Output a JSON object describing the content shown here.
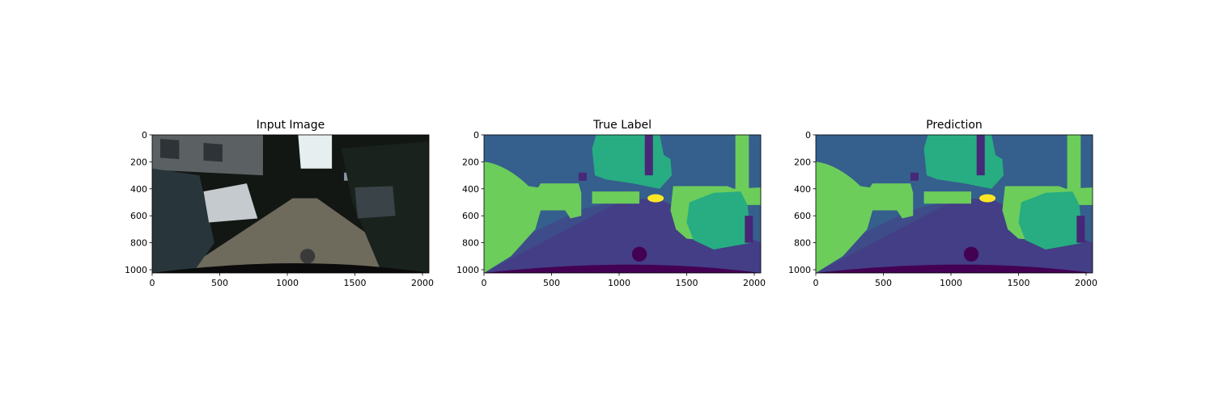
{
  "chart_data": [
    {
      "type": "image",
      "title": "Input Image",
      "xlim": [
        0,
        2048
      ],
      "ylim": [
        1024,
        0
      ],
      "xticks": [
        0,
        500,
        1000,
        1500,
        2000
      ],
      "yticks": [
        0,
        200,
        400,
        600,
        800,
        1000
      ]
    },
    {
      "type": "image",
      "title": "True Label",
      "xlim": [
        0,
        2048
      ],
      "ylim": [
        1024,
        0
      ],
      "xticks": [
        0,
        500,
        1000,
        1500,
        2000
      ],
      "yticks": [
        0,
        200,
        400,
        600,
        800,
        1000
      ]
    },
    {
      "type": "image",
      "title": "Prediction",
      "xlim": [
        0,
        2048
      ],
      "ylim": [
        1024,
        0
      ],
      "xticks": [
        0,
        500,
        1000,
        1500,
        2000
      ],
      "yticks": [
        0,
        200,
        400,
        600,
        800,
        1000
      ]
    }
  ]
}
